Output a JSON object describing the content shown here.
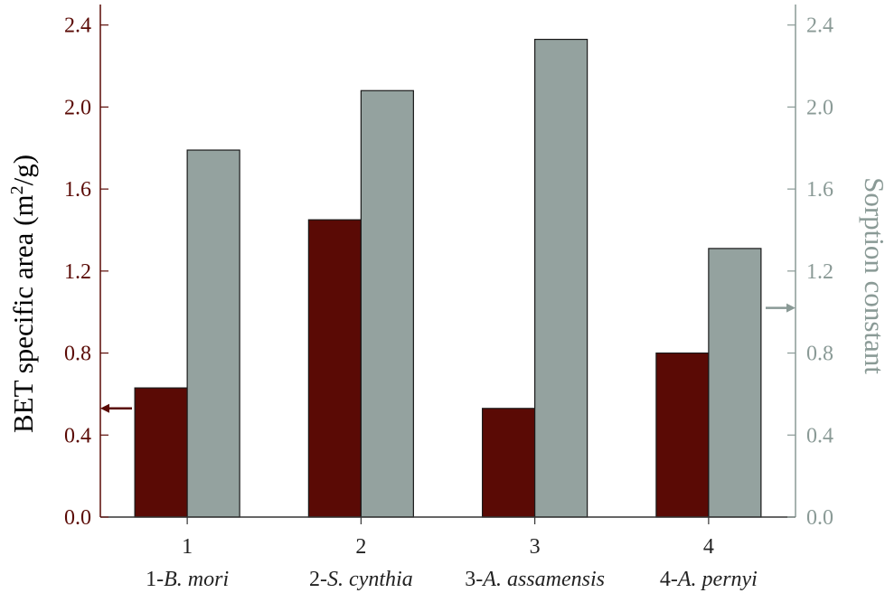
{
  "chart_data": {
    "type": "bar",
    "categories": [
      "1",
      "2",
      "3",
      "4"
    ],
    "category_names": [
      {
        "prefix": "1-",
        "name": "B. mori"
      },
      {
        "prefix": "2-",
        "name": "S. cynthia"
      },
      {
        "prefix": "3-",
        "name": "A. assamensis"
      },
      {
        "prefix": "4-",
        "name": "A. pernyi"
      }
    ],
    "series": [
      {
        "axis": "left",
        "color": "#5a0a05",
        "values": [
          0.63,
          1.45,
          0.53,
          0.8
        ]
      },
      {
        "axis": "right",
        "color": "#94a29f",
        "values": [
          1.79,
          2.08,
          2.33,
          1.31
        ]
      }
    ],
    "ylabel_left": "BET specific area (m",
    "ylabel_left_sup": "2",
    "ylabel_left_end": "/g)",
    "ylabel_right": "Sorption constant",
    "ylim": [
      0,
      2.5
    ],
    "yticks": [
      "0.0",
      "0.4",
      "0.8",
      "1.2",
      "1.6",
      "2.0",
      "2.4"
    ],
    "ytick_values": [
      0,
      0.4,
      0.8,
      1.2,
      1.6,
      2.0,
      2.4
    ],
    "left_axis_color": "#5a0a05",
    "right_axis_color": "#8a9a96",
    "arrow_left_value": 0.53,
    "arrow_right_value": 1.02,
    "grid": false
  }
}
